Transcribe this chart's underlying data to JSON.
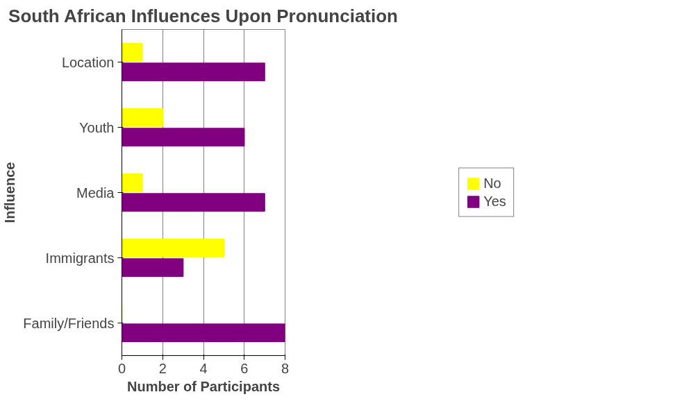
{
  "chart_data": {
    "type": "bar",
    "orientation": "horizontal",
    "title": "South African Influences Upon Pronunciation",
    "xlabel": "Number of Participants",
    "ylabel": "Influence",
    "categories": [
      "Location",
      "Youth",
      "Media",
      "Immigrants",
      "Family/Friends"
    ],
    "series": [
      {
        "name": "No",
        "color": "#ffff00",
        "values": [
          1,
          2,
          1,
          5,
          0
        ]
      },
      {
        "name": "Yes",
        "color": "#800080",
        "values": [
          7,
          6,
          7,
          3,
          8
        ]
      }
    ],
    "xlim": [
      0,
      8
    ],
    "xticks": [
      0,
      2,
      4,
      6,
      8
    ],
    "grid": "x",
    "legend": "right"
  }
}
